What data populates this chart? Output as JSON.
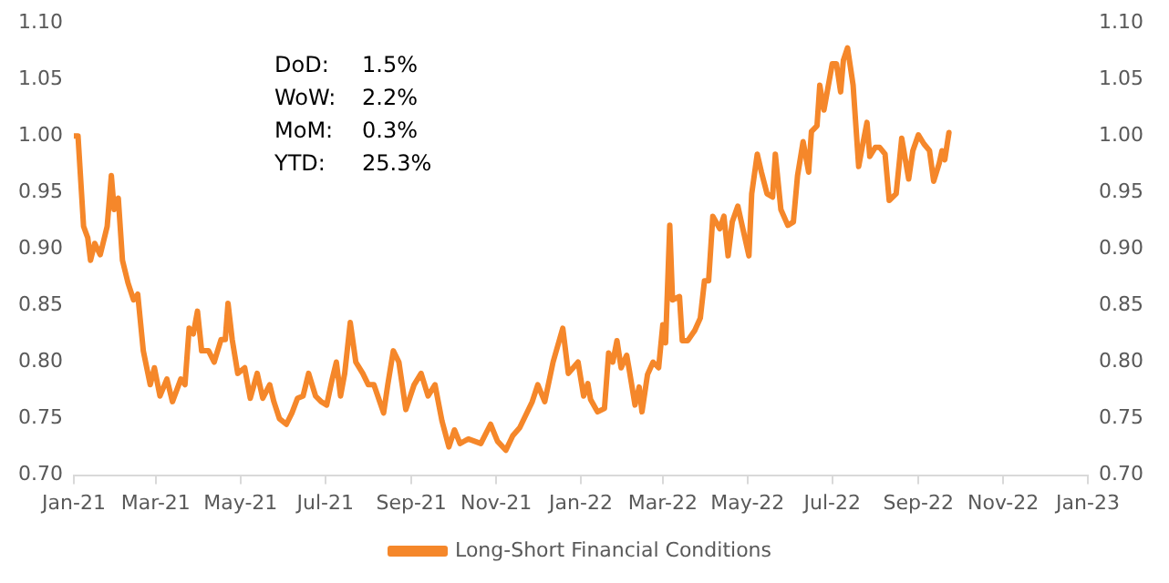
{
  "chart_data": {
    "type": "line",
    "x": [
      "2021-01-01",
      "2021-01-04",
      "2021-01-08",
      "2021-01-11",
      "2021-01-13",
      "2021-01-16",
      "2021-01-20",
      "2021-01-25",
      "2021-01-28",
      "2021-01-30",
      "2021-02-02",
      "2021-02-05",
      "2021-02-09",
      "2021-02-13",
      "2021-02-16",
      "2021-02-18",
      "2021-02-20",
      "2021-02-25",
      "2021-02-28",
      "2021-03-04",
      "2021-03-09",
      "2021-03-13",
      "2021-03-19",
      "2021-03-22",
      "2021-03-25",
      "2021-03-28",
      "2021-03-31",
      "2021-04-03",
      "2021-04-08",
      "2021-04-12",
      "2021-04-17",
      "2021-04-20",
      "2021-04-22",
      "2021-04-25",
      "2021-04-29",
      "2021-05-04",
      "2021-05-08",
      "2021-05-13",
      "2021-05-17",
      "2021-05-22",
      "2021-05-25",
      "2021-05-29",
      "2021-06-03",
      "2021-06-07",
      "2021-06-11",
      "2021-06-15",
      "2021-06-19",
      "2021-06-24",
      "2021-06-28",
      "2021-07-02",
      "2021-07-06",
      "2021-07-09",
      "2021-07-12",
      "2021-07-15",
      "2021-07-19",
      "2021-07-23",
      "2021-07-28",
      "2021-08-01",
      "2021-08-05",
      "2021-08-12",
      "2021-08-15",
      "2021-08-19",
      "2021-08-23",
      "2021-08-28",
      "2021-09-03",
      "2021-09-08",
      "2021-09-13",
      "2021-09-18",
      "2021-09-23",
      "2021-09-28",
      "2021-10-02",
      "2021-10-06",
      "2021-10-12",
      "2021-10-21",
      "2021-10-28",
      "2021-11-02",
      "2021-11-08",
      "2021-11-13",
      "2021-11-18",
      "2021-11-27",
      "2021-12-01",
      "2021-12-06",
      "2021-12-12",
      "2021-12-19",
      "2021-12-23",
      "2021-12-30",
      "2022-01-03",
      "2022-01-06",
      "2022-01-08",
      "2022-01-13",
      "2022-01-18",
      "2022-01-21",
      "2022-01-24",
      "2022-01-27",
      "2022-01-30",
      "2022-02-03",
      "2022-02-05",
      "2022-02-09",
      "2022-02-12",
      "2022-02-14",
      "2022-02-18",
      "2022-02-22",
      "2022-02-26",
      "2022-03-01",
      "2022-03-03",
      "2022-03-06",
      "2022-03-08",
      "2022-03-13",
      "2022-03-15",
      "2022-03-19",
      "2022-03-24",
      "2022-03-28",
      "2022-03-31",
      "2022-04-03",
      "2022-04-06",
      "2022-04-11",
      "2022-04-14",
      "2022-04-17",
      "2022-04-20",
      "2022-04-24",
      "2022-04-28",
      "2022-05-02",
      "2022-05-04",
      "2022-05-08",
      "2022-05-11",
      "2022-05-15",
      "2022-05-19",
      "2022-05-21",
      "2022-05-25",
      "2022-05-30",
      "2022-06-03",
      "2022-06-06",
      "2022-06-10",
      "2022-06-14",
      "2022-06-16",
      "2022-06-20",
      "2022-06-22",
      "2022-06-25",
      "2022-07-01",
      "2022-07-04",
      "2022-07-07",
      "2022-07-09",
      "2022-07-12",
      "2022-07-16",
      "2022-07-20",
      "2022-07-23",
      "2022-07-26",
      "2022-07-28",
      "2022-08-01",
      "2022-08-04",
      "2022-08-08",
      "2022-08-11",
      "2022-08-16",
      "2022-08-20",
      "2022-08-25",
      "2022-08-28",
      "2022-09-01",
      "2022-09-05",
      "2022-09-09",
      "2022-09-12",
      "2022-09-16",
      "2022-09-18",
      "2022-09-20",
      "2022-09-23"
    ],
    "series": [
      {
        "name": "Long-Short Financial Conditions",
        "color": "#f5872a",
        "values": [
          1.0,
          1.0,
          0.92,
          0.91,
          0.89,
          0.905,
          0.895,
          0.92,
          0.965,
          0.935,
          0.945,
          0.89,
          0.87,
          0.855,
          0.86,
          0.835,
          0.81,
          0.78,
          0.795,
          0.77,
          0.785,
          0.765,
          0.785,
          0.78,
          0.83,
          0.825,
          0.845,
          0.81,
          0.81,
          0.8,
          0.82,
          0.82,
          0.852,
          0.82,
          0.79,
          0.795,
          0.768,
          0.79,
          0.768,
          0.78,
          0.765,
          0.75,
          0.745,
          0.755,
          0.768,
          0.77,
          0.79,
          0.77,
          0.765,
          0.762,
          0.785,
          0.8,
          0.77,
          0.79,
          0.835,
          0.8,
          0.79,
          0.78,
          0.78,
          0.755,
          0.78,
          0.81,
          0.8,
          0.758,
          0.78,
          0.79,
          0.77,
          0.78,
          0.748,
          0.725,
          0.74,
          0.728,
          0.732,
          0.728,
          0.745,
          0.73,
          0.722,
          0.735,
          0.742,
          0.765,
          0.78,
          0.765,
          0.8,
          0.83,
          0.79,
          0.8,
          0.77,
          0.781,
          0.767,
          0.756,
          0.759,
          0.808,
          0.8,
          0.819,
          0.795,
          0.806,
          0.792,
          0.762,
          0.778,
          0.756,
          0.789,
          0.8,
          0.795,
          0.833,
          0.817,
          0.921,
          0.855,
          0.858,
          0.819,
          0.819,
          0.828,
          0.839,
          0.872,
          0.872,
          0.929,
          0.918,
          0.929,
          0.894,
          0.924,
          0.938,
          0.916,
          0.894,
          0.949,
          0.984,
          0.968,
          0.949,
          0.946,
          0.984,
          0.935,
          0.921,
          0.924,
          0.965,
          0.995,
          0.968,
          1.004,
          1.009,
          1.045,
          1.023,
          1.064,
          1.064,
          1.039,
          1.067,
          1.078,
          1.045,
          0.973,
          0.993,
          1.012,
          0.982,
          0.99,
          0.99,
          0.984,
          0.943,
          0.949,
          0.998,
          0.962,
          0.987,
          1.001,
          0.993,
          0.987,
          0.96,
          0.976,
          0.987,
          0.979,
          1.003
        ]
      }
    ],
    "xlim": [
      "2021-01-01",
      "2023-01-01"
    ],
    "xticks": [
      {
        "value": "2021-01-01",
        "label": "Jan-21"
      },
      {
        "value": "2021-03-01",
        "label": "Mar-21"
      },
      {
        "value": "2021-05-01",
        "label": "May-21"
      },
      {
        "value": "2021-07-01",
        "label": "Jul-21"
      },
      {
        "value": "2021-09-01",
        "label": "Sep-21"
      },
      {
        "value": "2021-11-01",
        "label": "Nov-21"
      },
      {
        "value": "2022-01-01",
        "label": "Jan-22"
      },
      {
        "value": "2022-03-01",
        "label": "Mar-22"
      },
      {
        "value": "2022-05-01",
        "label": "May-22"
      },
      {
        "value": "2022-07-01",
        "label": "Jul-22"
      },
      {
        "value": "2022-09-01",
        "label": "Sep-22"
      },
      {
        "value": "2022-11-01",
        "label": "Nov-22"
      },
      {
        "value": "2023-01-01",
        "label": "Jan-23"
      }
    ],
    "ylim": [
      0.7,
      1.1
    ],
    "yticks": [
      {
        "value": 0.7,
        "label": "0.70"
      },
      {
        "value": 0.75,
        "label": "0.75"
      },
      {
        "value": 0.8,
        "label": "0.80"
      },
      {
        "value": 0.85,
        "label": "0.85"
      },
      {
        "value": 0.9,
        "label": "0.90"
      },
      {
        "value": 0.95,
        "label": "0.95"
      },
      {
        "value": 1.0,
        "label": "1.00"
      },
      {
        "value": 1.05,
        "label": "1.05"
      },
      {
        "value": 1.1,
        "label": "1.10"
      }
    ],
    "y2lim": [
      0.7,
      1.1
    ],
    "y2ticks": [
      {
        "value": 0.7,
        "label": "0.70"
      },
      {
        "value": 0.75,
        "label": "0.75"
      },
      {
        "value": 0.8,
        "label": "0.80"
      },
      {
        "value": 0.85,
        "label": "0.85"
      },
      {
        "value": 0.9,
        "label": "0.90"
      },
      {
        "value": 0.95,
        "label": "0.95"
      },
      {
        "value": 1.0,
        "label": "1.00"
      },
      {
        "value": 1.05,
        "label": "1.05"
      },
      {
        "value": 1.1,
        "label": "1.10"
      }
    ],
    "annotations": [
      "DoD: 1.5%",
      "WoW: 2.2%",
      "MoM: 0.3%",
      "YTD: 25.3%"
    ],
    "grid": false,
    "legend": "bottom",
    "marker": "none",
    "line_style": "solid"
  }
}
